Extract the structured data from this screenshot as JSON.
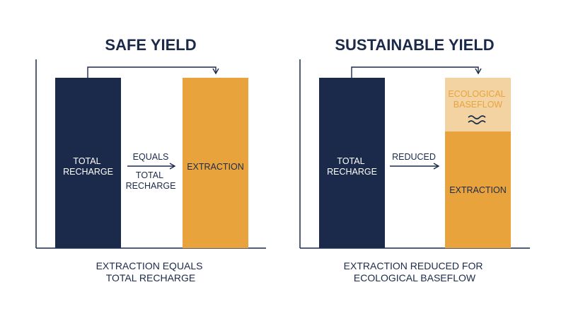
{
  "colors": {
    "navy": "#1b2a4a",
    "orange": "#e8a33d",
    "light_orange": "#f3d3a1",
    "axis": "#1b2a4a"
  },
  "left": {
    "title": "SAFE YIELD",
    "recharge_label": [
      "TOTAL",
      "RECHARGE"
    ],
    "arrow_top_label": "EQUALS",
    "arrow_bottom_label": [
      "TOTAL",
      "RECHARGE"
    ],
    "extraction_label": "EXTRACTION",
    "caption": [
      "EXTRACTION EQUALS",
      "TOTAL RECHARGE"
    ]
  },
  "right": {
    "title": "SUSTAINABLE YIELD",
    "recharge_label": [
      "TOTAL",
      "RECHARGE"
    ],
    "arrow_top_label": "REDUCED",
    "baseflow_label": [
      "ECOLOGICAL",
      "BASEFLOW"
    ],
    "wave_icon": "water-wave-icon",
    "extraction_label": "EXTRACTION",
    "caption": [
      "EXTRACTION REDUCED FOR",
      "ECOLOGICAL BASEFLOW"
    ]
  }
}
